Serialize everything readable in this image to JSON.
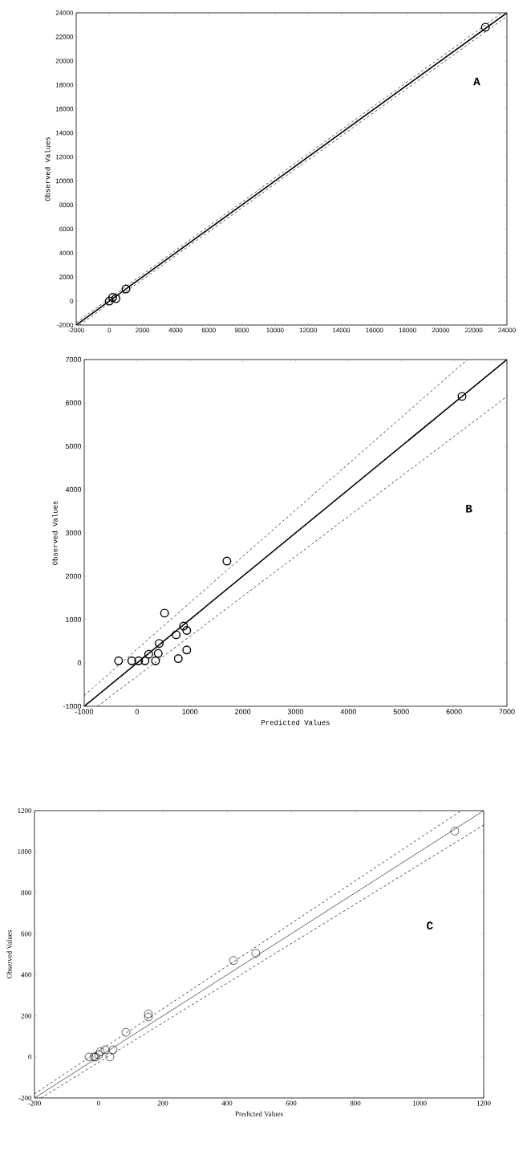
{
  "chart_data": [
    {
      "type": "scatter",
      "ylabel": "Observed Values",
      "annotations": [
        "A"
      ],
      "xlim": [
        -2000,
        24000
      ],
      "ylim": [
        -2000,
        24000
      ],
      "xticks": [
        -2000,
        0,
        2000,
        4000,
        6000,
        8000,
        10000,
        12000,
        14000,
        16000,
        18000,
        20000,
        22000,
        24000
      ],
      "yticks": [
        -2000,
        0,
        2000,
        4000,
        6000,
        8000,
        10000,
        12000,
        14000,
        16000,
        18000,
        20000,
        22000,
        24000
      ],
      "series": [
        {
          "color": "#000000",
          "marker": "circle",
          "x": [
            0,
            200,
            400,
            1000,
            22700
          ],
          "values": [
            0,
            300,
            200,
            1000,
            22800
          ]
        },
        {
          "type": "line",
          "color": "#000000",
          "line_style": "solid",
          "x": [
            -2000,
            24000
          ],
          "values": [
            -2000,
            24000
          ]
        },
        {
          "type": "line",
          "color": "#000000",
          "line_style": "dashed",
          "x": [
            -2000,
            23700
          ],
          "values": [
            -1800,
            24000
          ]
        },
        {
          "type": "line",
          "color": "#000000",
          "line_style": "dashed",
          "x": [
            -1800,
            24000
          ],
          "values": [
            -2000,
            23700
          ]
        }
      ]
    },
    {
      "type": "scatter",
      "xlabel": "Predicted Values",
      "ylabel": "Observed Values",
      "annotations": [
        "B"
      ],
      "xlim": [
        -1000,
        7000
      ],
      "ylim": [
        -1000,
        7000
      ],
      "xticks": [
        -1000,
        0,
        1000,
        2000,
        3000,
        4000,
        5000,
        6000,
        7000
      ],
      "yticks": [
        -1000,
        0,
        1000,
        2000,
        3000,
        4000,
        5000,
        6000,
        7000
      ],
      "series": [
        {
          "color": "#000000",
          "marker": "circle",
          "x": [
            -350,
            -100,
            30,
            150,
            350,
            220,
            400,
            420,
            740,
            880,
            940,
            780,
            940,
            520,
            1700,
            6150
          ],
          "values": [
            50,
            50,
            50,
            50,
            50,
            200,
            220,
            450,
            650,
            850,
            750,
            100,
            300,
            1150,
            2350,
            6150
          ]
        },
        {
          "type": "line",
          "color": "#000000",
          "line_style": "solid",
          "x": [
            -1000,
            7000
          ],
          "values": [
            -1000,
            7000
          ]
        },
        {
          "type": "line",
          "color": "#000000",
          "line_style": "dashed",
          "x": [
            -1000,
            6250
          ],
          "values": [
            -750,
            7000
          ]
        },
        {
          "type": "line",
          "color": "#000000",
          "line_style": "dashed",
          "x": [
            -750,
            7000
          ],
          "values": [
            -1000,
            6150
          ]
        }
      ]
    },
    {
      "type": "scatter",
      "xlabel": "Predicted Values",
      "ylabel": "Observed Values",
      "annotations": [
        "C"
      ],
      "xlim": [
        -200,
        1200
      ],
      "ylim": [
        -200,
        1200
      ],
      "xticks": [
        -200,
        0,
        200,
        400,
        600,
        800,
        1000,
        1200
      ],
      "yticks": [
        -200,
        0,
        200,
        400,
        600,
        800,
        1000,
        1200
      ],
      "series": [
        {
          "color": "#000000",
          "marker": "circle",
          "x": [
            1110,
            490,
            420,
            155,
            155,
            85,
            45,
            20,
            35,
            -30,
            -15,
            0,
            5,
            -10
          ],
          "values": [
            1100,
            505,
            470,
            210,
            195,
            120,
            35,
            35,
            0,
            0,
            0,
            10,
            25,
            0
          ]
        },
        {
          "type": "line",
          "color": "#000000",
          "line_style": "solid",
          "x": [
            -200,
            1200
          ],
          "values": [
            -200,
            1200
          ]
        },
        {
          "type": "line",
          "color": "#000000",
          "line_style": "dashed",
          "x": [
            -200,
            1130
          ],
          "values": [
            -180,
            1200
          ]
        },
        {
          "type": "line",
          "color": "#000000",
          "line_style": "dashed",
          "x": [
            -180,
            1200
          ],
          "values": [
            -200,
            1130
          ]
        }
      ]
    }
  ]
}
